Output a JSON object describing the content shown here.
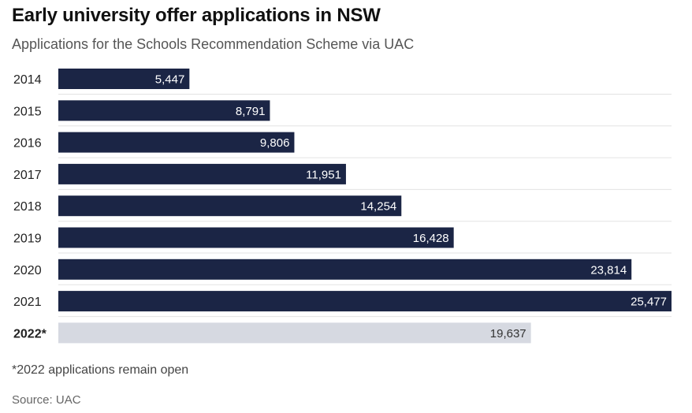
{
  "title": "Early university offer applications in NSW",
  "subtitle": "Applications for the Schools Recommendation Scheme via UAC",
  "footnote": "*2022 applications remain open",
  "source": "Source: UAC",
  "colors": {
    "bar": "#1b2545",
    "bar_highlight": "#d6d9e1",
    "grid": "#e3e3e3"
  },
  "chart_data": {
    "type": "bar",
    "orientation": "horizontal",
    "categories": [
      "2014",
      "2015",
      "2016",
      "2017",
      "2018",
      "2019",
      "2020",
      "2021",
      "2022*"
    ],
    "values": [
      5447,
      8791,
      9806,
      11951,
      14254,
      16428,
      23814,
      25477,
      19637
    ],
    "value_labels": [
      "5,447",
      "8,791",
      "9,806",
      "11,951",
      "14,254",
      "16,428",
      "23,814",
      "25,477",
      "19,637"
    ],
    "highlight_category": "2022*",
    "xlim": [
      0,
      25477
    ]
  }
}
